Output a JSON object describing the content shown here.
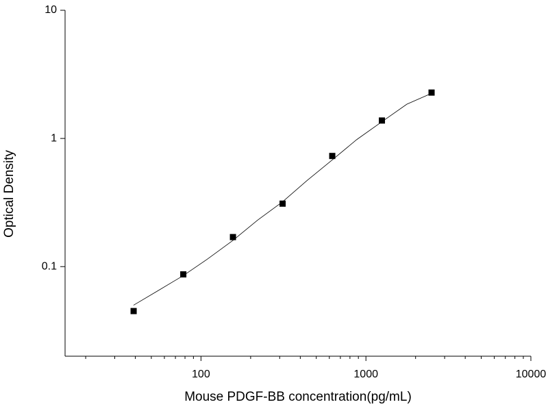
{
  "chart_data": {
    "type": "scatter",
    "xlabel": "Mouse PDGF-BB concentration(pg/mL)",
    "ylabel": "Optical Density",
    "xscale": "log",
    "yscale": "log",
    "xminor": true,
    "xlim": [
      15,
      10000
    ],
    "ylim": [
      0.02,
      10
    ],
    "xticks": [
      100,
      1000,
      10000
    ],
    "yticks": [
      0.1,
      1,
      10
    ],
    "series": [
      {
        "marker": "square",
        "color": "#000000",
        "x": [
          39.06,
          78.13,
          156.25,
          312.5,
          625,
          1250,
          2500
        ],
        "values": [
          0.045,
          0.087,
          0.17,
          0.31,
          0.73,
          1.38,
          2.28
        ]
      },
      {
        "marker": "line",
        "color": "#000000",
        "x": [
          39,
          55,
          78,
          110,
          156,
          220,
          312,
          440,
          625,
          880,
          1250,
          1770,
          2500
        ],
        "values": [
          0.05,
          0.065,
          0.085,
          0.115,
          0.16,
          0.23,
          0.32,
          0.47,
          0.68,
          0.98,
          1.35,
          1.85,
          2.25
        ]
      }
    ]
  }
}
